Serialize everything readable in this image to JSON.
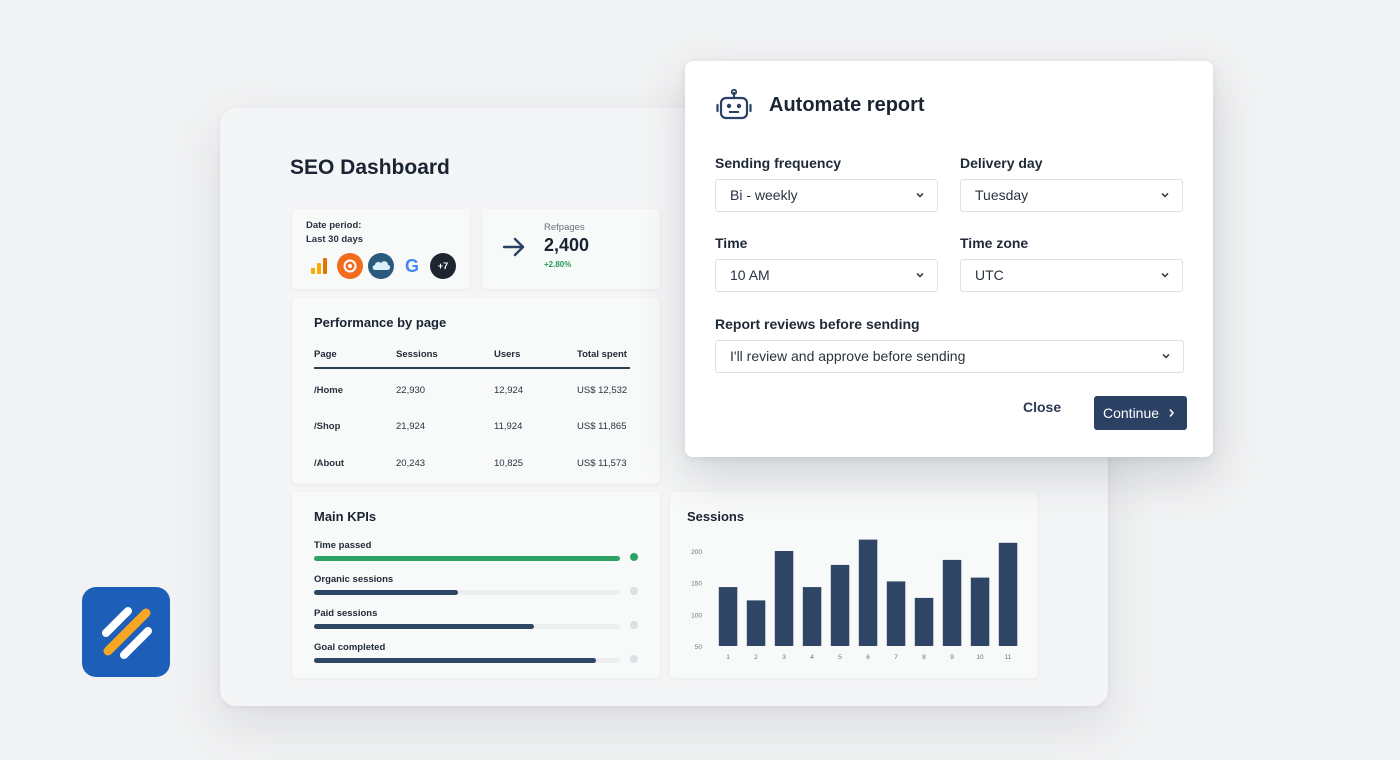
{
  "colors": {
    "primary": "#2b4163",
    "success": "#2ea367",
    "brand_logo": "#1d5fb8",
    "brand_stripes": [
      "#ffffff",
      "#f5a623"
    ]
  },
  "dashboard": {
    "title": "SEO Dashboard",
    "date_period": {
      "label": "Date period:",
      "value": "Last 30 days",
      "integrations": [
        {
          "name": "analytics-icon"
        },
        {
          "name": "semrush-icon"
        },
        {
          "name": "salesforce-icon"
        },
        {
          "name": "google-icon",
          "glyph": "G"
        },
        {
          "name": "more-integrations-badge",
          "label": "+7"
        }
      ]
    },
    "refpages": {
      "label": "Refpages",
      "value": "2,400",
      "delta": "+2.80%"
    },
    "performance": {
      "title": "Performance by page",
      "columns": [
        "Page",
        "Sessions",
        "Users",
        "Total spent"
      ],
      "rows": [
        [
          "/Home",
          "22,930",
          "12,924",
          "US$ 12,532"
        ],
        [
          "/Shop",
          "21,924",
          "11,924",
          "US$ 11,865"
        ],
        [
          "/About",
          "20,243",
          "10,825",
          "US$ 11,573"
        ]
      ]
    },
    "kpis": {
      "title": "Main KPIs",
      "items": [
        {
          "label": "Time passed",
          "progress": 1.0,
          "complete": true
        },
        {
          "label": "Organic sessions",
          "progress": 0.47,
          "complete": false
        },
        {
          "label": "Paid sessions",
          "progress": 0.72,
          "complete": false
        },
        {
          "label": "Goal completed",
          "progress": 0.92,
          "complete": false
        }
      ]
    },
    "sessions": {
      "title": "Sessions"
    }
  },
  "chart_data": {
    "type": "bar",
    "title": "Sessions",
    "categories": [
      "1",
      "2",
      "3",
      "4",
      "5",
      "6",
      "7",
      "8",
      "9",
      "10",
      "11"
    ],
    "values": [
      143,
      122,
      200,
      143,
      178,
      218,
      152,
      126,
      186,
      158,
      213
    ],
    "y_ticks": [
      50,
      100,
      150,
      200
    ],
    "ylim": [
      50,
      230
    ],
    "bar_color": "#2f4566",
    "grid": false
  },
  "modal": {
    "title": "Automate report",
    "icon": "robot-icon",
    "sending_frequency": {
      "label": "Sending frequency",
      "value": "Bi - weekly"
    },
    "delivery_day": {
      "label": "Delivery day",
      "value": "Tuesday"
    },
    "time": {
      "label": "Time",
      "value": "10 AM"
    },
    "time_zone": {
      "label": "Time zone",
      "value": "UTC"
    },
    "review": {
      "label": "Report reviews before sending",
      "value": "I'll review and approve before sending"
    },
    "close_label": "Close",
    "continue_label": "Continue"
  }
}
